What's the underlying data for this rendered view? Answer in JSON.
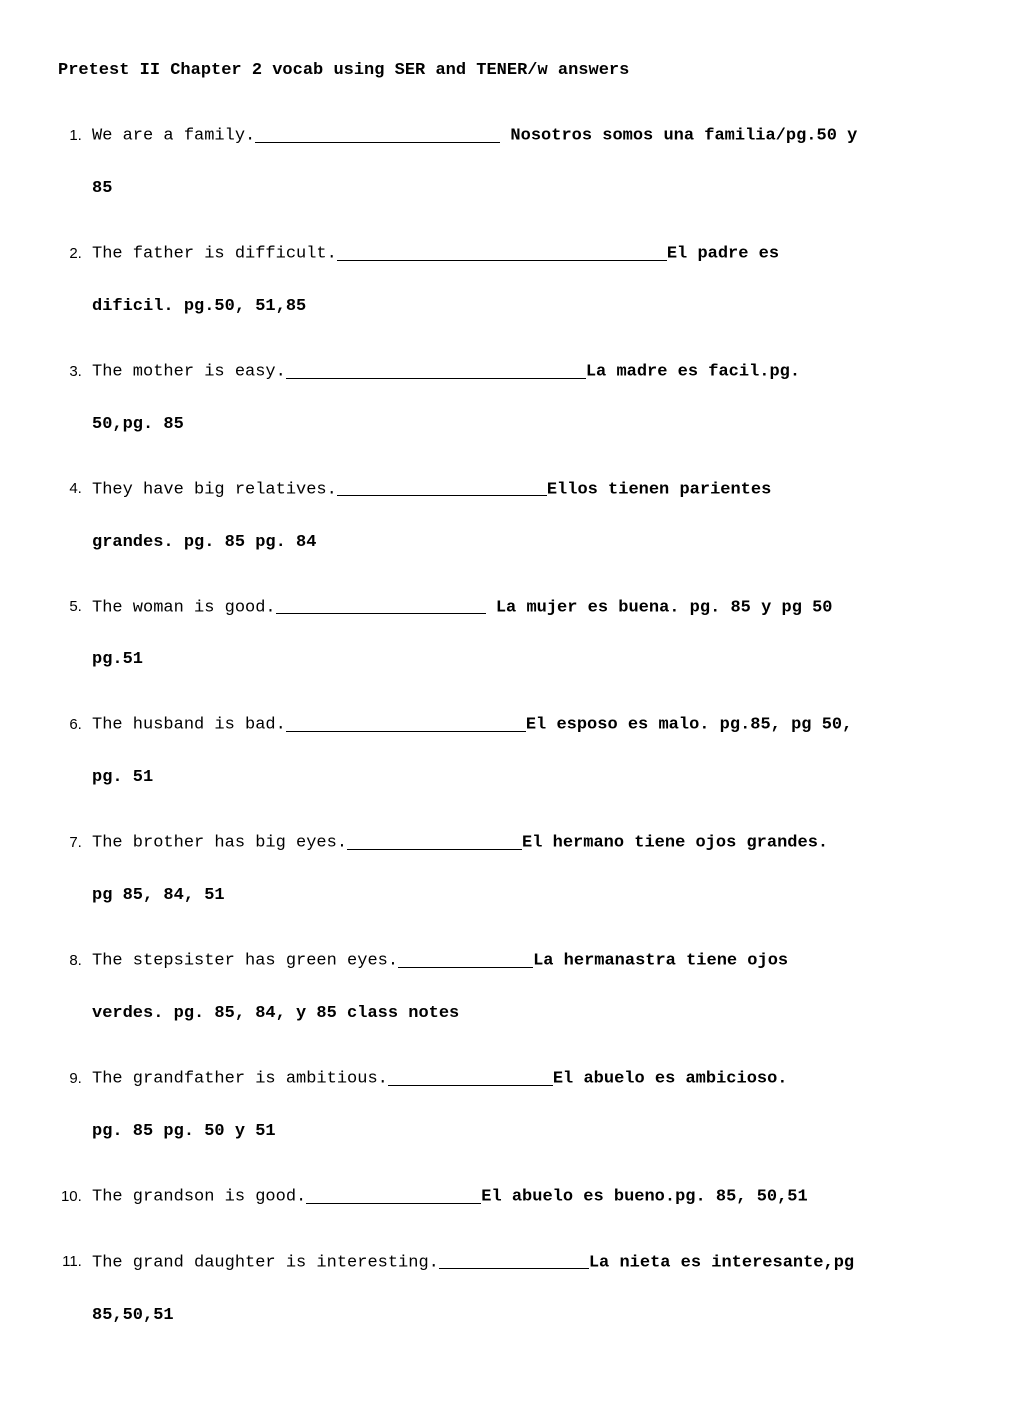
{
  "title": "Pretest II Chapter 2 vocab using SER and TENER/w answers",
  "items": [
    {
      "prompt": "We are a family.",
      "blank_width": 245,
      "answer": " Nosotros somos una familia/pg.50 y",
      "cont": "85"
    },
    {
      "prompt": "The father is difficult.",
      "blank_width": 330,
      "answer": "El padre es",
      "cont": "dificil. pg.50, 51,85"
    },
    {
      "prompt": "The mother is easy.",
      "blank_width": 300,
      "answer": "La madre es facil.pg.",
      "cont": "50,pg. 85"
    },
    {
      "prompt": "They have big relatives.",
      "blank_width": 210,
      "answer": "Ellos tienen parientes",
      "cont": "grandes. pg. 85 pg. 84"
    },
    {
      "prompt": "The woman is good.",
      "blank_width": 210,
      "answer": " La mujer es buena. pg. 85 y pg 50",
      "cont": "pg.51"
    },
    {
      "prompt": "The husband is bad.",
      "blank_width": 240,
      "answer": "El esposo es malo. pg.85, pg 50,",
      "cont": "pg. 51"
    },
    {
      "prompt": "The brother has big eyes.",
      "blank_width": 175,
      "answer": "El hermano tiene ojos grandes.",
      "cont": "pg 85, 84, 51"
    },
    {
      "prompt": "The stepsister has green eyes.",
      "blank_width": 135,
      "answer": "La hermanastra tiene ojos",
      "cont": "verdes. pg. 85, 84, y 85 class notes"
    },
    {
      "prompt": "The grandfather is ambitious.",
      "blank_width": 165,
      "answer": "El abuelo es ambicioso.",
      "cont": "pg. 85 pg. 50 y 51"
    },
    {
      "prompt": "The grandson is good.",
      "blank_width": 175,
      "answer": "El abuelo es bueno.pg. 85, 50,51",
      "cont": ""
    },
    {
      "prompt": "The grand daughter is interesting.",
      "blank_width": 150,
      "answer": "La nieta es interesante,pg",
      "cont": "85,50,51"
    }
  ]
}
